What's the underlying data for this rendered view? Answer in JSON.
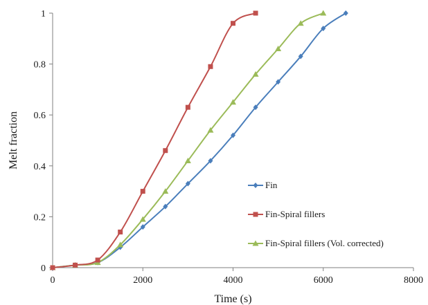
{
  "chart_data": {
    "type": "line",
    "title": "",
    "xlabel": "Time (s)",
    "ylabel": "Melt fraction",
    "xlim": [
      0,
      8000
    ],
    "ylim": [
      0,
      1
    ],
    "xticks": [
      0,
      2000,
      4000,
      6000,
      8000
    ],
    "yticks": [
      0,
      0.2,
      0.4,
      0.6,
      0.8,
      1
    ],
    "xtick_labels": [
      "0",
      "2000",
      "4000",
      "6000",
      "8000"
    ],
    "ytick_labels": [
      "0",
      "0.2",
      "0.4",
      "0.6",
      "0.8",
      "1"
    ],
    "grid": false,
    "legend_position": "bottom-right",
    "series": [
      {
        "name": "Fin",
        "color": "#4a7ebb",
        "marker": "diamond",
        "x": [
          0,
          500,
          1000,
          1500,
          2000,
          2500,
          3000,
          3500,
          4000,
          4500,
          5000,
          5500,
          6000,
          6500
        ],
        "y": [
          0,
          0.01,
          0.02,
          0.08,
          0.16,
          0.24,
          0.33,
          0.42,
          0.52,
          0.63,
          0.73,
          0.83,
          0.94,
          1.0
        ]
      },
      {
        "name": "Fin-Spiral fillers",
        "color": "#c0504d",
        "marker": "square",
        "x": [
          0,
          500,
          1000,
          1500,
          2000,
          2500,
          3000,
          3500,
          4000,
          4500
        ],
        "y": [
          0,
          0.01,
          0.03,
          0.14,
          0.3,
          0.46,
          0.63,
          0.79,
          0.96,
          1.0
        ]
      },
      {
        "name": "Fin-Spiral fillers (Vol. corrected)",
        "color": "#9bbb59",
        "marker": "triangle",
        "x": [
          0,
          500,
          1000,
          1500,
          2000,
          2500,
          3000,
          3500,
          4000,
          4500,
          5000,
          5500,
          6000
        ],
        "y": [
          0,
          0.01,
          0.02,
          0.09,
          0.19,
          0.3,
          0.42,
          0.54,
          0.65,
          0.76,
          0.86,
          0.96,
          1.0
        ]
      }
    ]
  }
}
